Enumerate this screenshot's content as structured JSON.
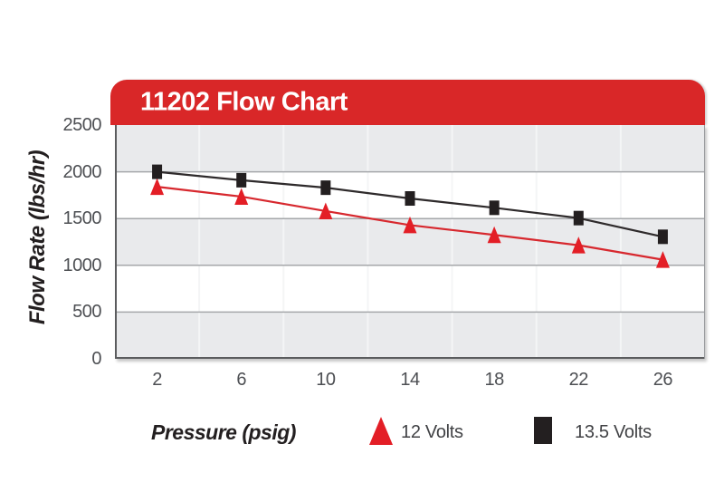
{
  "chart_data": {
    "type": "line",
    "title": "11202 Flow Chart",
    "xlabel": "Pressure (psig)",
    "ylabel": "Flow Rate (lbs/hr)",
    "categories": [
      2,
      6,
      10,
      14,
      18,
      22,
      26
    ],
    "ylim": [
      0,
      2500
    ],
    "yticks": [
      2500,
      2000,
      1500,
      1000,
      500,
      0
    ],
    "grid": "horizontal gridlines every 500 with alternating gray/white bands; faint vertical category separators",
    "legend_position": "bottom",
    "series": [
      {
        "name": "12 Volts",
        "marker": "triangle",
        "color": "#E31E26",
        "line_color": "#D7282E",
        "values": [
          1840,
          1735,
          1580,
          1430,
          1325,
          1215,
          1060
        ]
      },
      {
        "name": "13.5 Volts",
        "marker": "square",
        "color": "#231F20",
        "line_color": "#2E2A2B",
        "values": [
          2000,
          1910,
          1830,
          1715,
          1615,
          1505,
          1305
        ]
      }
    ]
  },
  "colors": {
    "banner_red": "#D92728",
    "title_text": "#FFFFFF",
    "stripe_gray": "#E9EAEC",
    "stripe_white": "#FFFFFF",
    "h_gridline": "#A5A7AA",
    "v_gridline": "#F4F5F6",
    "axis_border_dark": "#5B5C5E",
    "axis_border_light": "#97999C",
    "tick_text": "#4D4F53",
    "label_text": "#231F20"
  }
}
